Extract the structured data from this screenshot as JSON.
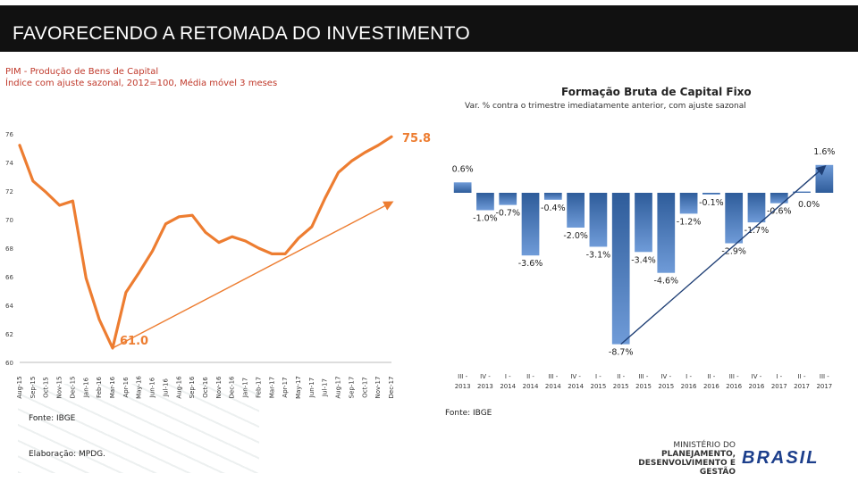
{
  "header": {
    "title": "FAVORECENDO A RETOMADA DO INVESTIMENTO"
  },
  "left_panel": {
    "title_line1": "PIM - Produção de Bens de Capital",
    "title_line2": "Índice com ajuste sazonal, 2012=100, Média móvel 3 meses",
    "source": "Fonte: IBGE",
    "credit": "Elaboração: MPDG."
  },
  "right_panel": {
    "title": "Formação Bruta de Capital Fixo",
    "subtitle": "Var. % contra o trimestre imediatamente anterior, com ajuste sazonal",
    "source": "Fonte: IBGE"
  },
  "logo": {
    "ministry_line1": "MINISTÉRIO DO",
    "ministry_line2": "PLANEJAMENTO,",
    "ministry_line3": "DESENVOLVIMENTO E GESTÃO",
    "brand": "BRASIL"
  },
  "colors": {
    "line": "#ED7D31",
    "bar": "#2E5C9A",
    "callout": "#ED7D31",
    "header": "#111111"
  },
  "chart_data": [
    {
      "type": "line",
      "categories": [
        "Aug-15",
        "Sep-15",
        "Oct-15",
        "Nov-15",
        "Dec-15",
        "Jan-16",
        "Feb-16",
        "Mar-16",
        "Apr-16",
        "May-16",
        "Jun-16",
        "Jul-16",
        "Aug-16",
        "Sep-16",
        "Oct-16",
        "Nov-16",
        "Dec-16",
        "Jan-17",
        "Feb-17",
        "Mar-17",
        "Apr-17",
        "May-17",
        "Jun-17",
        "Jul-17",
        "Aug-17",
        "Sep-17",
        "Oct-17",
        "Nov-17",
        "Dec-17"
      ],
      "series": [
        {
          "values": [
            75.2,
            72.7,
            71.9,
            71.0,
            71.3,
            65.9,
            63.0,
            61.0,
            64.9,
            66.3,
            67.8,
            69.7,
            70.2,
            70.3,
            69.1,
            68.4,
            68.8,
            68.5,
            68.0,
            67.6,
            67.6,
            68.7,
            69.5,
            71.5,
            73.3,
            74.1,
            74.7,
            75.2,
            75.8
          ]
        }
      ],
      "trend": {
        "start": 61.0,
        "end": 71.2
      },
      "callouts": [
        {
          "label": "75.8",
          "category": "Dec-17",
          "value": 75.8
        },
        {
          "label": "61.0",
          "category": "Mar-16",
          "value": 61.0
        }
      ],
      "ylim": [
        60,
        76
      ],
      "yticks": [
        "60",
        "62",
        "64",
        "66",
        "68",
        "70",
        "72",
        "74",
        "76"
      ],
      "grid": false
    },
    {
      "type": "bar",
      "categories": [
        [
          "III -",
          "2013"
        ],
        [
          "IV -",
          "2013"
        ],
        [
          "I -",
          "2014"
        ],
        [
          "II -",
          "2014"
        ],
        [
          "III -",
          "2014"
        ],
        [
          "IV -",
          "2014"
        ],
        [
          "I -",
          "2015"
        ],
        [
          "II -",
          "2015"
        ],
        [
          "III -",
          "2015"
        ],
        [
          "IV -",
          "2015"
        ],
        [
          "I -",
          "2016"
        ],
        [
          "II -",
          "2016"
        ],
        [
          "III -",
          "2016"
        ],
        [
          "IV -",
          "2016"
        ],
        [
          "I -",
          "2017"
        ],
        [
          "II -",
          "2017"
        ],
        [
          "III -",
          "2017"
        ]
      ],
      "values": [
        0.6,
        -1.0,
        -0.7,
        -3.6,
        -0.4,
        -2.0,
        -3.1,
        -8.7,
        -3.4,
        -4.6,
        -1.2,
        -0.1,
        -2.9,
        -1.7,
        -0.6,
        0.0,
        1.6
      ],
      "labels": [
        "0.6%",
        "-1.0%",
        "-0.7%",
        "-3.6%",
        "-0.4%",
        "-2.0%",
        "-3.1%",
        "-8.7%",
        "-3.4%",
        "-4.6%",
        "-1.2%",
        "-0.1%",
        "-2.9%",
        "-1.7%",
        "-0.6%",
        "0.0%",
        "1.6%"
      ],
      "trend_arrow": true,
      "ylim": [
        -9,
        2
      ],
      "grid": false
    }
  ]
}
